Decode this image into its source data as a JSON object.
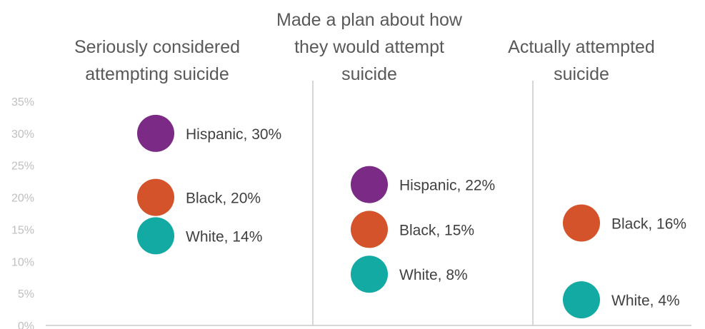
{
  "chart_data": {
    "type": "scatter",
    "y_axis": {
      "min": 0,
      "max": 35,
      "ticks": [
        "0%",
        "5%",
        "10%",
        "15%",
        "20%",
        "25%",
        "30%",
        "35%"
      ]
    },
    "grid": false,
    "panels": [
      {
        "title_lines": [
          "Seriously considered",
          "attempting suicide"
        ],
        "points": [
          {
            "group": "Hispanic",
            "value": 30,
            "label": "Hispanic, 30%"
          },
          {
            "group": "Black",
            "value": 20,
            "label": "Black, 20%"
          },
          {
            "group": "White",
            "value": 14,
            "label": "White, 14%"
          }
        ]
      },
      {
        "title_lines": [
          "Made a plan about how",
          "they would attempt",
          "suicide"
        ],
        "points": [
          {
            "group": "Hispanic",
            "value": 22,
            "label": "Hispanic, 22%"
          },
          {
            "group": "Black",
            "value": 15,
            "label": "Black, 15%"
          },
          {
            "group": "White",
            "value": 8,
            "label": "White, 8%"
          }
        ]
      },
      {
        "title_lines": [
          "Actually attempted",
          "suicide"
        ],
        "points": [
          {
            "group": "Black",
            "value": 16,
            "label": "Black, 16%"
          },
          {
            "group": "White",
            "value": 4,
            "label": "White, 4%"
          }
        ]
      }
    ],
    "colors": {
      "Hispanic": "#7b2a86",
      "Black": "#d4532a",
      "White": "#12aaa3"
    }
  }
}
